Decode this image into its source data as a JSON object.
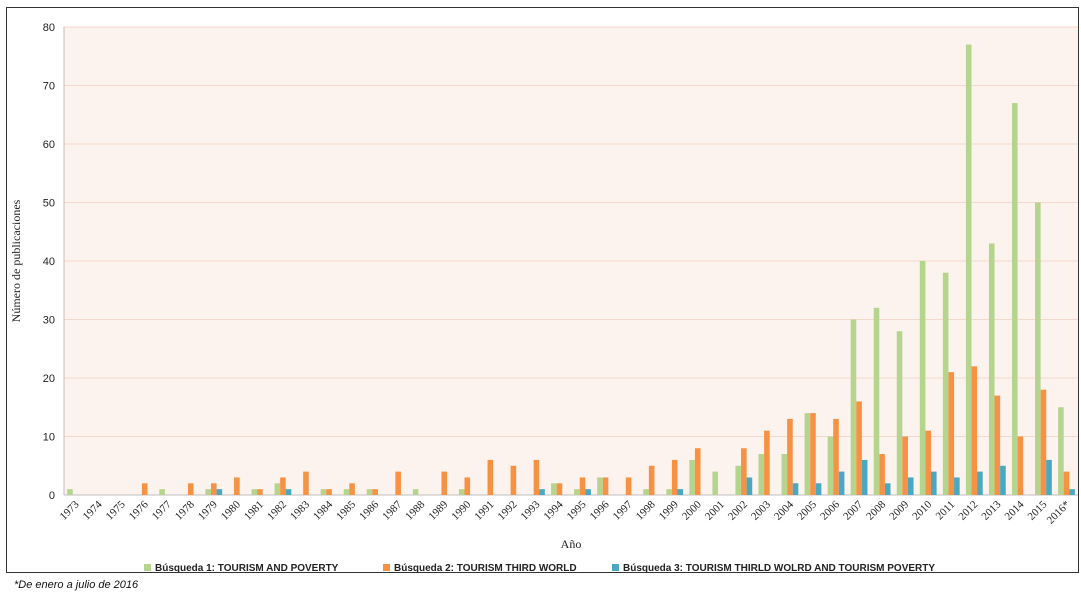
{
  "chart_data": {
    "type": "bar",
    "title": "",
    "xlabel": "Año",
    "ylabel": "Número de publicaciones",
    "ylim": [
      0,
      80
    ],
    "yticks": [
      0,
      10,
      20,
      30,
      40,
      50,
      60,
      70,
      80
    ],
    "grid": true,
    "legend_position": "bottom",
    "categories": [
      "1973",
      "1974",
      "1975",
      "1976",
      "1977",
      "1978",
      "1979",
      "1980",
      "1981",
      "1982",
      "1983",
      "1984",
      "1985",
      "1986",
      "1987",
      "1988",
      "1989",
      "1990",
      "1991",
      "1992",
      "1993",
      "1994",
      "1995",
      "1996",
      "1997",
      "1998",
      "1999",
      "2000",
      "2001",
      "2002",
      "2003",
      "2004",
      "2005",
      "2006",
      "2007",
      "2008",
      "2009",
      "2010",
      "2011",
      "2012",
      "2013",
      "2014",
      "2015",
      "2016*"
    ],
    "series": [
      {
        "name": "Búsqueda 1: TOURISM AND POVERTY",
        "color": "#b5d58e",
        "values": [
          1,
          0,
          0,
          0,
          1,
          0,
          1,
          0,
          1,
          2,
          0,
          1,
          1,
          1,
          0,
          1,
          0,
          1,
          0,
          0,
          0,
          2,
          1,
          3,
          0,
          1,
          1,
          6,
          4,
          5,
          7,
          7,
          14,
          10,
          30,
          32,
          28,
          40,
          38,
          77,
          43,
          67,
          50,
          15
        ]
      },
      {
        "name": "Búsqueda 2: TOURISM THIRD WORLD",
        "color": "#f79244",
        "values": [
          0,
          0,
          0,
          2,
          0,
          2,
          2,
          3,
          1,
          3,
          4,
          1,
          2,
          1,
          4,
          0,
          4,
          3,
          6,
          5,
          6,
          2,
          3,
          3,
          3,
          5,
          6,
          8,
          0,
          8,
          11,
          13,
          14,
          13,
          16,
          7,
          10,
          11,
          21,
          22,
          17,
          10,
          18,
          4
        ]
      },
      {
        "name": "Búsqueda 3:  TOURISM THIRLD WOLRD AND TOURISM POVERTY",
        "color": "#4aa8c0",
        "values": [
          0,
          0,
          0,
          0,
          0,
          0,
          1,
          0,
          0,
          1,
          0,
          0,
          0,
          0,
          0,
          0,
          0,
          0,
          0,
          0,
          1,
          0,
          1,
          0,
          0,
          0,
          1,
          0,
          0,
          3,
          0,
          2,
          2,
          4,
          6,
          2,
          3,
          4,
          3,
          4,
          5,
          0,
          6,
          1
        ]
      }
    ]
  },
  "footnote": "*De enero a julio de 2016"
}
